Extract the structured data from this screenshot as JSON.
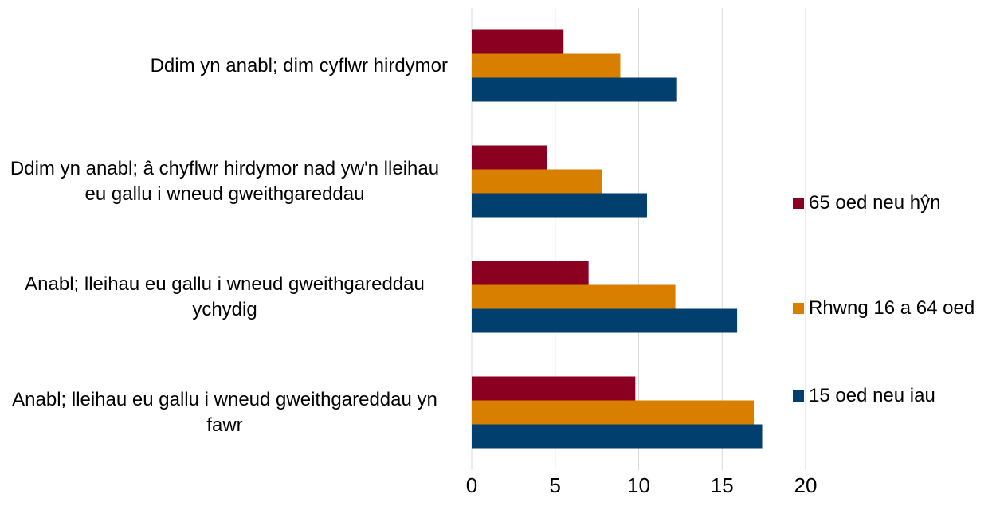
{
  "chart_data": {
    "type": "barh",
    "categories": [
      "Ddim yn anabl; dim cyflwr hirdymor",
      "Ddim yn anabl; â chyflwr hirdymor nad yw'n lleihau eu gallu i wneud gweithgareddau",
      "Anabl; lleihau eu gallu i wneud gweithgareddau ychydig",
      "Anabl; lleihau eu gallu i wneud gweithgareddau yn fawr"
    ],
    "series": [
      {
        "name": "65 oed neu hŷn",
        "color": "#8b0021",
        "values": [
          5.5,
          4.5,
          7.0,
          9.8
        ]
      },
      {
        "name": "Rhwng 16 a 64 oed",
        "color": "#d97f00",
        "values": [
          8.9,
          7.8,
          12.2,
          16.9
        ]
      },
      {
        "name": "15 oed neu iau",
        "color": "#003f6e",
        "values": [
          12.3,
          10.5,
          15.9,
          17.4
        ]
      }
    ],
    "xlim": [
      0,
      20
    ],
    "xticks": [
      0,
      5,
      10,
      15,
      20
    ],
    "grid": true,
    "legend": "right"
  }
}
